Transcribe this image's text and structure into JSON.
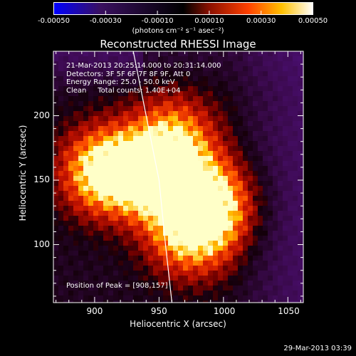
{
  "colorbar": {
    "tick_labels": [
      "-0.00050",
      "-0.00030",
      "-0.00010",
      "0.00010",
      "0.00030",
      "0.00050"
    ],
    "tick_values": [
      -0.0005,
      -0.0003,
      -0.0001,
      0.0001,
      0.0003,
      0.0005
    ],
    "units_label": "(photons cm⁻² s⁻¹ asec⁻²)",
    "colors": [
      "#0000ff",
      "#3a1060",
      "#000000",
      "#8a1000",
      "#ff4000",
      "#ffc000",
      "#ffffff"
    ]
  },
  "chart_data": {
    "type": "heatmap",
    "title": "Reconstructed RHESSI Image",
    "xlabel": "Heliocentric X (arcsec)",
    "ylabel": "Heliocentric Y (arcsec)",
    "xlim": [
      868,
      1062
    ],
    "ylim": [
      55,
      250
    ],
    "x_ticks": [
      900,
      950,
      1000,
      1050
    ],
    "y_ticks": [
      100,
      150,
      200
    ],
    "sources": [
      {
        "x": 908,
        "y": 157,
        "intensity": 1.0
      },
      {
        "x": 951,
        "y": 154,
        "intensity": 1.0
      },
      {
        "x": 990,
        "y": 132,
        "intensity": 0.85
      },
      {
        "x": 974,
        "y": 107,
        "intensity": 0.7
      },
      {
        "x": 962,
        "y": 185,
        "intensity": 0.55
      }
    ],
    "limb_curve": [
      [
        930,
        250
      ],
      [
        940,
        200
      ],
      [
        950,
        150
      ],
      [
        955,
        100
      ],
      [
        960,
        55
      ]
    ],
    "info_lines": [
      "21-Mar-2013 20:25:14.000 to 20:31:14.000",
      "Detectors: 3F 5F 6F 7F 8F 9F, Att 0",
      "Energy Range: 25.0 - 50.0 keV",
      "Clean     Total counts: 1.40E+04"
    ],
    "peak_label": "Position of Peak = [908,157]"
  },
  "timestamp": "29-Mar-2013 03:39"
}
